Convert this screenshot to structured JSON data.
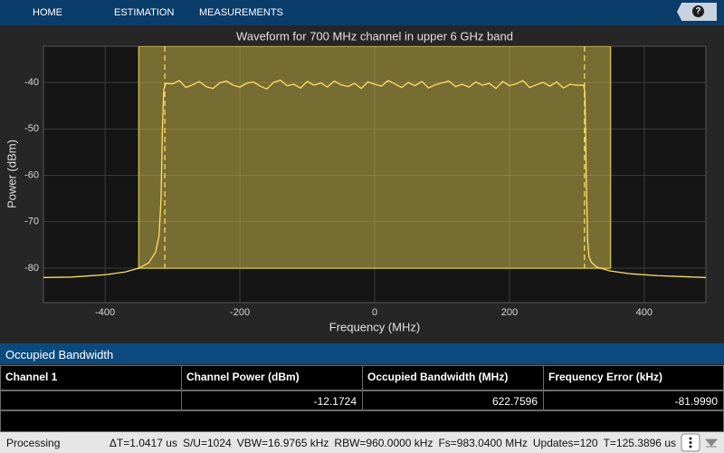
{
  "toolbar": {
    "tabs": [
      "HOME",
      "ESTIMATION",
      "MEASUREMENTS"
    ],
    "help": "?"
  },
  "chart_data": {
    "type": "line",
    "title": "Waveform for 700 MHz channel in upper 6 GHz band",
    "x_label": "Frequency (MHz)",
    "y_label": "Power (dBm)",
    "xlim": [
      -491.52,
      491.52
    ],
    "ylim": [
      -87.4,
      -32.2
    ],
    "xticks": [
      -400,
      -200,
      0,
      200,
      400
    ],
    "yticks": [
      -80,
      -70,
      -60,
      -50,
      -40
    ],
    "grid": true,
    "channel_span": [
      -350,
      350
    ],
    "channel_floor": -80,
    "channel_color": "#c8b44a",
    "obw_edges": [
      -311.38,
      311.38
    ],
    "x": [
      -491.52,
      -450,
      -400,
      -370,
      -350,
      -335,
      -325,
      -320,
      -317,
      -315,
      -313,
      -310,
      -300,
      -290,
      -280,
      -270,
      -260,
      -250,
      -240,
      -230,
      -220,
      -210,
      -200,
      -190,
      -180,
      -170,
      -160,
      -150,
      -140,
      -130,
      -120,
      -110,
      -100,
      -90,
      -80,
      -70,
      -60,
      -50,
      -40,
      -30,
      -20,
      -10,
      0,
      10,
      20,
      30,
      40,
      50,
      60,
      70,
      80,
      90,
      100,
      110,
      120,
      130,
      140,
      150,
      160,
      170,
      180,
      190,
      200,
      210,
      220,
      230,
      240,
      250,
      260,
      270,
      280,
      290,
      300,
      310,
      312,
      314,
      316,
      318,
      322,
      330,
      350,
      380,
      420,
      491.52
    ],
    "series": [
      {
        "color": "#ffe066",
        "values": [
          -82,
          -81.9,
          -81.4,
          -80.8,
          -80,
          -78.8,
          -76.5,
          -73,
          -65,
          -50,
          -41.5,
          -40.2,
          -40.3,
          -39.6,
          -41.1,
          -40.5,
          -39.8,
          -40.9,
          -41.3,
          -40.1,
          -39.7,
          -40.6,
          -41.0,
          -40.2,
          -39.9,
          -40.8,
          -41.4,
          -40.0,
          -39.5,
          -40.7,
          -40.4,
          -41.2,
          -39.8,
          -40.6,
          -40.1,
          -41.0,
          -39.7,
          -40.5,
          -40.9,
          -40.2,
          -41.3,
          -39.9,
          -40.4,
          -40.8,
          -39.6,
          -40.3,
          -41.1,
          -40.0,
          -40.7,
          -39.8,
          -41.2,
          -40.5,
          -40.1,
          -39.7,
          -40.9,
          -40.4,
          -41.0,
          -39.9,
          -40.6,
          -40.2,
          -41.3,
          -39.8,
          -40.7,
          -40.3,
          -39.6,
          -41.1,
          -40.5,
          -40.0,
          -40.8,
          -39.9,
          -41.2,
          -40.4,
          -40.6,
          -40.6,
          -42,
          -60,
          -74,
          -77.5,
          -78.8,
          -79.8,
          -80.6,
          -81.2,
          -81.6,
          -82
        ]
      }
    ]
  },
  "panel": {
    "title": "Occupied Bandwidth"
  },
  "table": {
    "headers": [
      "Channel 1",
      "Channel Power (dBm)",
      "Occupied Bandwidth (MHz)",
      "Frequency Error (kHz)"
    ],
    "rows": [
      [
        "-12.1724",
        "622.7596",
        "-81.9990"
      ]
    ]
  },
  "status": {
    "state": "Processing",
    "items": [
      "ΔT=1.0417 us",
      "S/U=1024",
      "VBW=16.9765 kHz",
      "RBW=960.0000 kHz",
      "Fs=983.0400 MHz",
      "Updates=120",
      "T=125.3896 us"
    ]
  }
}
